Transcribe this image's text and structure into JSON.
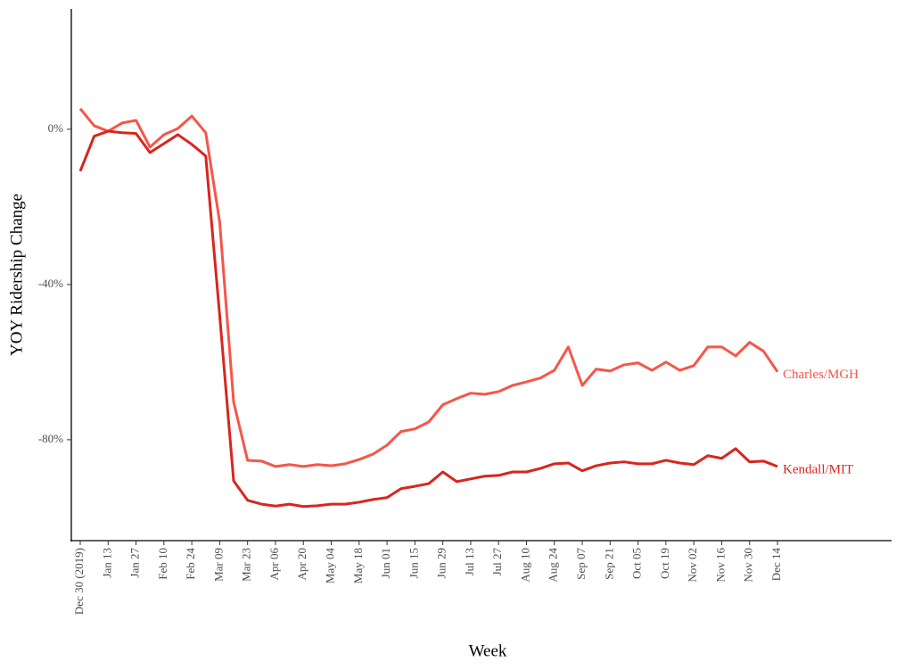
{
  "chart_data": {
    "type": "line",
    "x_label": "Week",
    "y_label": "YOY Ridership Change",
    "categories": [
      "Dec 30 (2019)",
      null,
      "Jan 13",
      null,
      "Jan 27",
      null,
      "Feb 10",
      null,
      "Feb 24",
      null,
      "Mar 09",
      null,
      "Mar 23",
      null,
      "Apr 06",
      null,
      "Apr 20",
      null,
      "May 04",
      null,
      "May 18",
      null,
      "Jun 01",
      null,
      "Jun 15",
      null,
      "Jun 29",
      null,
      "Jul 13",
      null,
      "Jul 27",
      null,
      "Aug 10",
      null,
      "Aug 24",
      null,
      "Sep 07",
      null,
      "Sep 21",
      null,
      "Oct 05",
      null,
      "Oct 19",
      null,
      "Nov 02",
      null,
      "Nov 16",
      null,
      "Nov 30",
      null,
      "Dec 14"
    ],
    "series": [
      {
        "name": "Charles/MGH",
        "color": "#f5564a",
        "values": [
          5.3,
          0.9,
          -0.5,
          1.6,
          2.3,
          -4.6,
          -1.4,
          0.2,
          3.4,
          -0.9,
          -23.9,
          -70.3,
          -85.3,
          -85.5,
          -86.9,
          -86.4,
          -86.9,
          -86.4,
          -86.7,
          -86.2,
          -85.1,
          -83.7,
          -81.4,
          -77.9,
          -77.2,
          -75.4,
          -71.0,
          -69.4,
          -68.0,
          -68.3,
          -67.6,
          -66.0,
          -65.1,
          -64.1,
          -62.1,
          -56.1,
          -66.0,
          -61.8,
          -62.3,
          -60.7,
          -60.2,
          -62.1,
          -60.0,
          -62.1,
          -60.9,
          -56.1,
          -56.1,
          -58.4,
          -54.9,
          -57.2,
          -62.5
        ]
      },
      {
        "name": "Kendall/MIT",
        "color": "#d7261e",
        "values": [
          -10.8,
          -1.8,
          -0.5,
          -0.9,
          -1.1,
          -6.0,
          -3.7,
          -1.4,
          -3.9,
          -6.9,
          -48.0,
          -90.6,
          -95.6,
          -96.6,
          -97.1,
          -96.6,
          -97.2,
          -97.0,
          -96.6,
          -96.6,
          -96.1,
          -95.4,
          -94.9,
          -92.6,
          -92.0,
          -91.3,
          -88.3,
          -90.8,
          -90.1,
          -89.4,
          -89.2,
          -88.3,
          -88.3,
          -87.4,
          -86.2,
          -86.0,
          -88.0,
          -86.7,
          -86.0,
          -85.7,
          -86.2,
          -86.2,
          -85.3,
          -86.0,
          -86.4,
          -84.1,
          -84.8,
          -82.3,
          -85.7,
          -85.5,
          -86.9
        ]
      }
    ],
    "ylim": [
      -106,
      31
    ],
    "yticks": [
      {
        "value": -80,
        "label": "-80%"
      },
      {
        "value": -40,
        "label": "-40%"
      },
      {
        "value": 0,
        "label": "0%"
      }
    ],
    "grid": false
  }
}
